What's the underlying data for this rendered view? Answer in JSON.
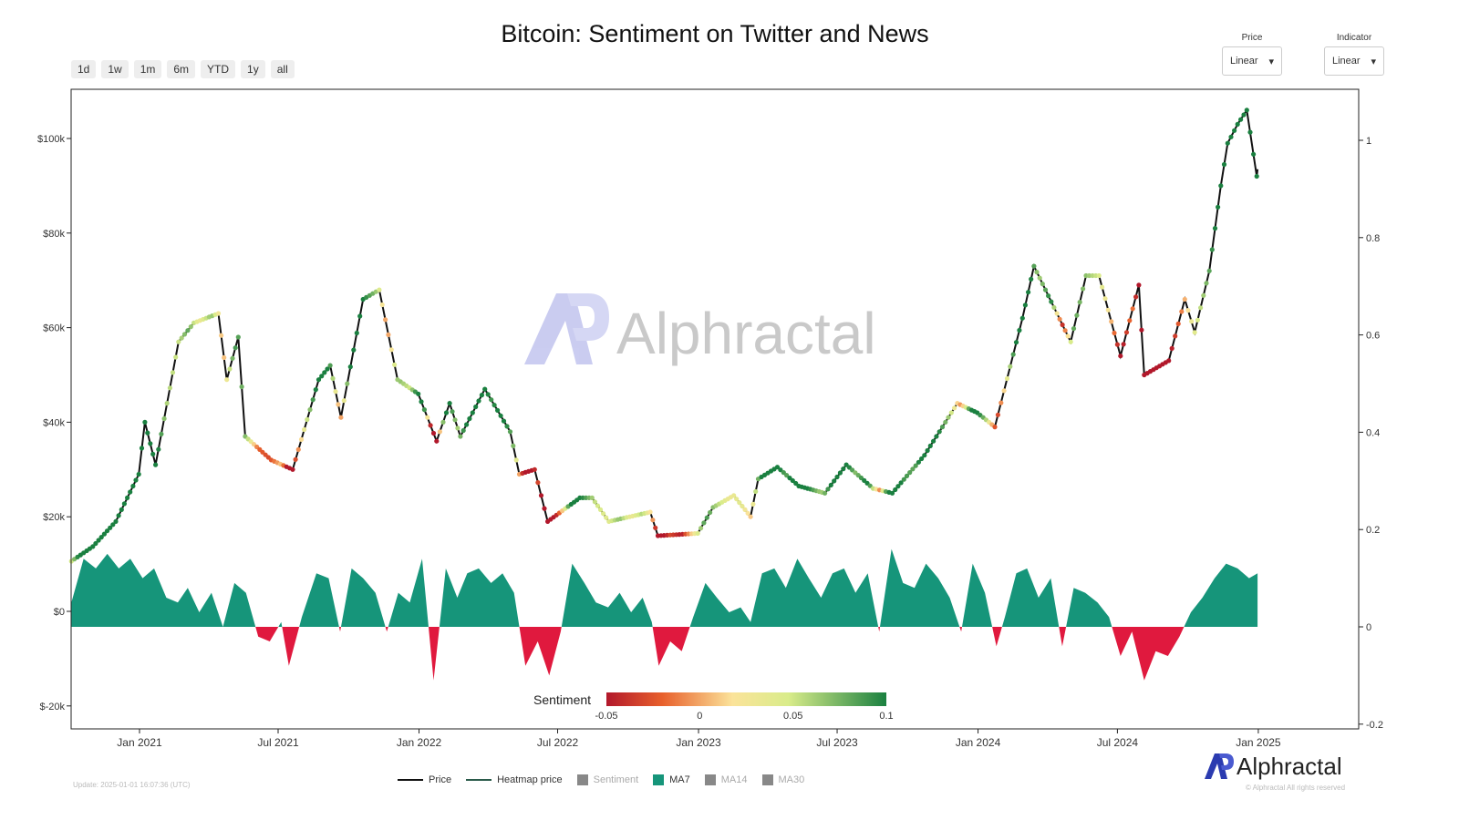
{
  "title": "Bitcoin: Sentiment on Twitter and News",
  "range_buttons": [
    "1d",
    "1w",
    "1m",
    "6m",
    "YTD",
    "1y",
    "all"
  ],
  "controls": {
    "price": {
      "label": "Price",
      "value": "Linear"
    },
    "indicator": {
      "label": "Indicator",
      "value": "Linear"
    }
  },
  "legend": {
    "price": "Price",
    "heatmap": "Heatmap price",
    "sentiment": "Sentiment",
    "ma7": "MA7",
    "ma14": "MA14",
    "ma30": "MA30"
  },
  "colorbar": {
    "label": "Sentiment",
    "ticks": [
      "-0.05",
      "0",
      "0.05",
      "0.1"
    ],
    "min": -0.05,
    "max": 0.1
  },
  "update": "Update: 2025-01-01 16:07:36 (UTC)",
  "copyright": "© Alphractal All rights reserved",
  "brand": "Alphractal",
  "colors": {
    "ma7_pos": "#16957a",
    "ma7_neg": "#e0193e",
    "price": "#111111",
    "low": "#b2182b",
    "mid": "#f7f2a0",
    "high": "#1a8040"
  },
  "chart_data": {
    "type": "line+area",
    "x_ticks": [
      "Jan 2021",
      "Jul 2021",
      "Jan 2022",
      "Jul 2022",
      "Jan 2023",
      "Jul 2023",
      "Jan 2024",
      "Jul 2024",
      "Jan 2025"
    ],
    "x_tick_dates": [
      "2021-01-01",
      "2021-07-01",
      "2022-01-01",
      "2022-07-01",
      "2023-01-01",
      "2023-07-01",
      "2024-01-01",
      "2024-07-01",
      "2025-01-01"
    ],
    "y_left": {
      "ticks": [
        "$-20k",
        "$0",
        "$20k",
        "$40k",
        "$60k",
        "$80k",
        "$100k"
      ],
      "values": [
        -20,
        0,
        20,
        40,
        60,
        80,
        100
      ],
      "unit": "k USD"
    },
    "y_right": {
      "ticks": [
        "-0.2",
        "0",
        "0.2",
        "0.4",
        "0.6",
        "0.8",
        "1"
      ],
      "values": [
        -0.2,
        0,
        0.2,
        0.4,
        0.6,
        0.8,
        1
      ]
    },
    "price": [
      [
        "2020-10-04",
        10.6
      ],
      [
        "2020-11-01",
        13.7
      ],
      [
        "2020-12-01",
        19
      ],
      [
        "2020-12-31",
        29
      ],
      [
        "2021-01-08",
        40
      ],
      [
        "2021-01-22",
        31
      ],
      [
        "2021-02-21",
        57
      ],
      [
        "2021-03-13",
        61
      ],
      [
        "2021-04-14",
        63
      ],
      [
        "2021-04-25",
        49
      ],
      [
        "2021-05-10",
        58
      ],
      [
        "2021-05-19",
        37
      ],
      [
        "2021-06-22",
        32
      ],
      [
        "2021-07-20",
        30
      ],
      [
        "2021-08-23",
        49
      ],
      [
        "2021-09-07",
        52
      ],
      [
        "2021-09-21",
        41
      ],
      [
        "2021-10-20",
        66
      ],
      [
        "2021-11-10",
        68
      ],
      [
        "2021-12-04",
        49
      ],
      [
        "2021-12-31",
        46
      ],
      [
        "2022-01-24",
        36
      ],
      [
        "2022-02-10",
        44
      ],
      [
        "2022-02-24",
        37
      ],
      [
        "2022-03-28",
        47
      ],
      [
        "2022-04-30",
        38
      ],
      [
        "2022-05-12",
        29
      ],
      [
        "2022-06-01",
        30
      ],
      [
        "2022-06-18",
        19
      ],
      [
        "2022-07-30",
        24
      ],
      [
        "2022-08-15",
        24
      ],
      [
        "2022-09-06",
        19
      ],
      [
        "2022-10-30",
        21
      ],
      [
        "2022-11-09",
        16
      ],
      [
        "2022-12-31",
        16.5
      ],
      [
        "2023-01-20",
        22
      ],
      [
        "2023-02-16",
        24.5
      ],
      [
        "2023-03-10",
        20
      ],
      [
        "2023-03-20",
        28
      ],
      [
        "2023-04-14",
        30.5
      ],
      [
        "2023-05-12",
        26.5
      ],
      [
        "2023-06-15",
        25
      ],
      [
        "2023-07-13",
        31
      ],
      [
        "2023-08-17",
        26
      ],
      [
        "2023-09-11",
        25
      ],
      [
        "2023-10-23",
        33
      ],
      [
        "2023-12-05",
        44
      ],
      [
        "2023-12-31",
        42
      ],
      [
        "2024-01-23",
        39
      ],
      [
        "2024-02-28",
        62
      ],
      [
        "2024-03-14",
        73
      ],
      [
        "2024-04-13",
        63
      ],
      [
        "2024-05-01",
        57
      ],
      [
        "2024-05-21",
        71
      ],
      [
        "2024-06-07",
        71
      ],
      [
        "2024-07-05",
        54
      ],
      [
        "2024-07-29",
        69
      ],
      [
        "2024-08-05",
        50
      ],
      [
        "2024-09-06",
        53
      ],
      [
        "2024-09-27",
        66
      ],
      [
        "2024-10-10",
        59
      ],
      [
        "2024-10-29",
        72
      ],
      [
        "2024-11-13",
        90
      ],
      [
        "2024-11-22",
        99
      ],
      [
        "2024-12-05",
        103
      ],
      [
        "2024-12-17",
        106
      ],
      [
        "2024-12-30",
        92
      ],
      [
        "2024-12-31",
        93.5
      ]
    ],
    "ma7": [
      [
        "2020-10-04",
        0.05
      ],
      [
        "2020-10-20",
        0.14
      ],
      [
        "2020-11-05",
        0.12
      ],
      [
        "2020-11-20",
        0.15
      ],
      [
        "2020-12-05",
        0.12
      ],
      [
        "2020-12-20",
        0.14
      ],
      [
        "2021-01-05",
        0.1
      ],
      [
        "2021-01-20",
        0.12
      ],
      [
        "2021-02-05",
        0.06
      ],
      [
        "2021-02-20",
        0.05
      ],
      [
        "2021-03-05",
        0.08
      ],
      [
        "2021-03-20",
        0.03
      ],
      [
        "2021-04-05",
        0.07
      ],
      [
        "2021-04-20",
        0.0
      ],
      [
        "2021-05-05",
        0.09
      ],
      [
        "2021-05-20",
        0.07
      ],
      [
        "2021-06-05",
        -0.02
      ],
      [
        "2021-06-20",
        -0.03
      ],
      [
        "2021-07-05",
        0.01
      ],
      [
        "2021-07-15",
        -0.08
      ],
      [
        "2021-08-01",
        0.02
      ],
      [
        "2021-08-20",
        0.11
      ],
      [
        "2021-09-05",
        0.1
      ],
      [
        "2021-09-20",
        -0.01
      ],
      [
        "2021-10-05",
        0.12
      ],
      [
        "2021-10-20",
        0.1
      ],
      [
        "2021-11-05",
        0.07
      ],
      [
        "2021-11-20",
        -0.01
      ],
      [
        "2021-12-05",
        0.07
      ],
      [
        "2021-12-20",
        0.05
      ],
      [
        "2022-01-05",
        0.14
      ],
      [
        "2022-01-20",
        -0.11
      ],
      [
        "2022-02-05",
        0.12
      ],
      [
        "2022-02-20",
        0.06
      ],
      [
        "2022-03-05",
        0.11
      ],
      [
        "2022-03-20",
        0.12
      ],
      [
        "2022-04-05",
        0.09
      ],
      [
        "2022-04-20",
        0.11
      ],
      [
        "2022-05-05",
        0.07
      ],
      [
        "2022-05-20",
        -0.08
      ],
      [
        "2022-06-05",
        -0.03
      ],
      [
        "2022-06-20",
        -0.1
      ],
      [
        "2022-07-05",
        -0.01
      ],
      [
        "2022-07-20",
        0.13
      ],
      [
        "2022-08-05",
        0.09
      ],
      [
        "2022-08-20",
        0.05
      ],
      [
        "2022-09-05",
        0.04
      ],
      [
        "2022-09-20",
        0.07
      ],
      [
        "2022-10-05",
        0.03
      ],
      [
        "2022-10-20",
        0.06
      ],
      [
        "2022-11-01",
        0.01
      ],
      [
        "2022-11-10",
        -0.08
      ],
      [
        "2022-11-25",
        -0.03
      ],
      [
        "2022-12-10",
        -0.05
      ],
      [
        "2022-12-25",
        0.02
      ],
      [
        "2023-01-10",
        0.09
      ],
      [
        "2023-01-25",
        0.06
      ],
      [
        "2023-02-10",
        0.03
      ],
      [
        "2023-02-25",
        0.04
      ],
      [
        "2023-03-10",
        0.01
      ],
      [
        "2023-03-25",
        0.11
      ],
      [
        "2023-04-10",
        0.12
      ],
      [
        "2023-04-25",
        0.08
      ],
      [
        "2023-05-10",
        0.14
      ],
      [
        "2023-05-25",
        0.1
      ],
      [
        "2023-06-10",
        0.06
      ],
      [
        "2023-06-25",
        0.11
      ],
      [
        "2023-07-10",
        0.12
      ],
      [
        "2023-07-25",
        0.07
      ],
      [
        "2023-08-10",
        0.11
      ],
      [
        "2023-08-25",
        -0.01
      ],
      [
        "2023-09-10",
        0.16
      ],
      [
        "2023-09-25",
        0.09
      ],
      [
        "2023-10-10",
        0.08
      ],
      [
        "2023-10-25",
        0.13
      ],
      [
        "2023-11-10",
        0.1
      ],
      [
        "2023-11-25",
        0.06
      ],
      [
        "2023-12-10",
        -0.01
      ],
      [
        "2023-12-25",
        0.13
      ],
      [
        "2024-01-10",
        0.07
      ],
      [
        "2024-01-25",
        -0.04
      ],
      [
        "2024-02-05",
        0.02
      ],
      [
        "2024-02-20",
        0.11
      ],
      [
        "2024-03-05",
        0.12
      ],
      [
        "2024-03-20",
        0.06
      ],
      [
        "2024-04-05",
        0.1
      ],
      [
        "2024-04-20",
        -0.04
      ],
      [
        "2024-05-05",
        0.08
      ],
      [
        "2024-05-20",
        0.07
      ],
      [
        "2024-06-05",
        0.05
      ],
      [
        "2024-06-20",
        0.02
      ],
      [
        "2024-07-05",
        -0.06
      ],
      [
        "2024-07-20",
        -0.01
      ],
      [
        "2024-08-05",
        -0.11
      ],
      [
        "2024-08-20",
        -0.05
      ],
      [
        "2024-09-05",
        -0.06
      ],
      [
        "2024-09-20",
        -0.02
      ],
      [
        "2024-10-05",
        0.03
      ],
      [
        "2024-10-20",
        0.06
      ],
      [
        "2024-11-05",
        0.1
      ],
      [
        "2024-11-20",
        0.13
      ],
      [
        "2024-12-05",
        0.12
      ],
      [
        "2024-12-20",
        0.1
      ],
      [
        "2024-12-31",
        0.11
      ]
    ]
  }
}
